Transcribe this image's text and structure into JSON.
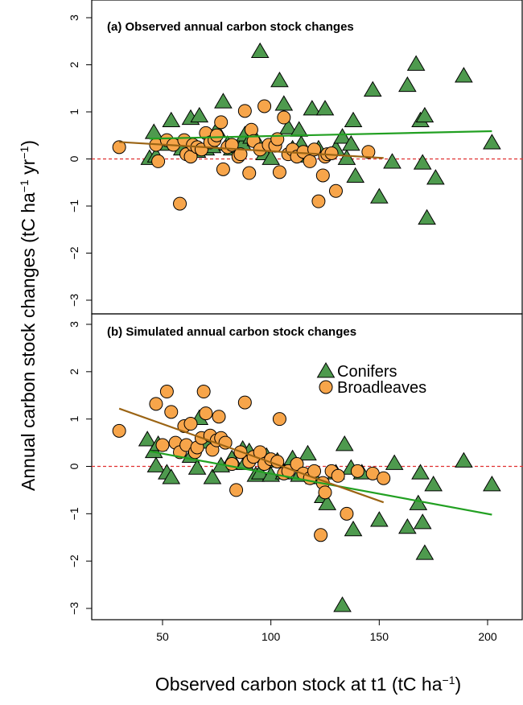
{
  "chart_data": [
    {
      "type": "scatter",
      "title": "(a) Observed annual carbon stock changes",
      "xlabel": "Observed carbon stock at t1",
      "xunit_base": "tC ha",
      "xunit_exp": "−1",
      "ylabel_main": "Annual carbon stock changes (tC ha",
      "ylabel_exp1": "−1",
      "ylabel_mid": " yr",
      "ylabel_exp2": "−1",
      "ylabel_end": ")",
      "xlim": [
        22,
        224
      ],
      "ylim": [
        -3.3,
        3.3
      ],
      "xticks": [
        "50",
        "100",
        "150",
        "200"
      ],
      "yticks": [
        "3",
        "2",
        "1",
        "0",
        "−1",
        "−2",
        "−3"
      ],
      "reference_line": 0,
      "series": [
        {
          "name": "Conifers",
          "marker": "triangle",
          "color": "#4e9a4e",
          "x": [
            44,
            46,
            47,
            52,
            54,
            59,
            63,
            66,
            67,
            70,
            73,
            75,
            78,
            80,
            82,
            85,
            87,
            88,
            91,
            93,
            95,
            97,
            100,
            104,
            106,
            108,
            110,
            113,
            114,
            117,
            119,
            122,
            125,
            130,
            133,
            135,
            137,
            138,
            139,
            147,
            150,
            156,
            163,
            167,
            169,
            170,
            171,
            172,
            176,
            189,
            202
          ],
          "y": [
            0.0,
            0.55,
            0.05,
            0.3,
            0.8,
            0.2,
            0.85,
            0.15,
            0.9,
            0.2,
            0.25,
            0.6,
            1.2,
            0.3,
            0.2,
            0.25,
            0.3,
            0.5,
            0.45,
            0.4,
            2.27,
            0.1,
            0.0,
            1.65,
            1.15,
            0.65,
            0.2,
            0.6,
            0.3,
            0.05,
            1.05,
            0.2,
            1.05,
            0.2,
            0.45,
            0.0,
            0.3,
            0.8,
            -0.38,
            1.45,
            -0.82,
            -0.08,
            1.55,
            2.0,
            0.8,
            -0.1,
            0.9,
            -1.27,
            -0.42,
            1.75,
            0.33
          ]
        },
        {
          "name": "Broadleaves",
          "marker": "circle",
          "color": "#f7a54a",
          "x": [
            30,
            47,
            48,
            52,
            55,
            58,
            60,
            61,
            63,
            64,
            66,
            68,
            70,
            72,
            74,
            75,
            77,
            78,
            80,
            82,
            85,
            86,
            88,
            90,
            91,
            92,
            95,
            97,
            99,
            102,
            103,
            104,
            106,
            108,
            110,
            112,
            115,
            118,
            120,
            122,
            124,
            125,
            126,
            128,
            130,
            145
          ],
          "y": [
            0.25,
            0.3,
            -0.05,
            0.4,
            0.3,
            -0.95,
            0.4,
            0.1,
            0.05,
            0.3,
            0.25,
            0.2,
            0.55,
            0.35,
            0.4,
            0.5,
            0.78,
            -0.22,
            0.25,
            0.3,
            0.05,
            0.1,
            1.02,
            -0.3,
            0.62,
            0.38,
            0.2,
            1.12,
            0.3,
            0.28,
            0.42,
            -0.28,
            0.88,
            0.1,
            0.2,
            0.05,
            0.15,
            -0.05,
            0.2,
            -0.9,
            -0.35,
            0.05,
            0.1,
            0.12,
            -0.68,
            0.15
          ]
        }
      ],
      "fits": [
        {
          "name": "Conifers",
          "color": "#22a022",
          "x": [
            44,
            202
          ],
          "y": [
            0.43,
            0.59
          ]
        },
        {
          "name": "Broadleaves",
          "color": "#9b6414",
          "x": [
            30,
            152
          ],
          "y": [
            0.36,
            0.02
          ]
        }
      ]
    },
    {
      "type": "scatter",
      "title": "(b) Simulated annual carbon stock changes",
      "xlim": [
        22,
        224
      ],
      "ylim": [
        -3.3,
        3.3
      ],
      "xticks": [
        "50",
        "100",
        "150",
        "200"
      ],
      "yticks": [
        "3",
        "2",
        "1",
        "0",
        "−1",
        "−2",
        "−3"
      ],
      "reference_line": 0,
      "legend": {
        "position": "top-center",
        "entries": [
          {
            "label": "Conifers",
            "marker": "triangle",
            "color": "#4e9a4e"
          },
          {
            "label": "Broadleaves",
            "marker": "circle",
            "color": "#f7a54a"
          }
        ]
      },
      "series": [
        {
          "name": "Conifers",
          "marker": "triangle",
          "color": "#4e9a4e",
          "x": [
            43,
            46,
            47,
            48,
            52,
            54,
            63,
            66,
            67,
            70,
            73,
            77,
            82,
            87,
            88,
            90,
            93,
            95,
            98,
            100,
            103,
            106,
            110,
            113,
            117,
            120,
            124,
            126,
            130,
            133,
            134,
            137,
            138,
            142,
            150,
            157,
            163,
            168,
            169,
            170,
            171,
            175,
            189,
            202
          ],
          "y": [
            0.55,
            0.3,
            0.0,
            0.45,
            -0.15,
            -0.25,
            0.2,
            -0.05,
            1.0,
            0.5,
            -0.25,
            0.0,
            0.15,
            0.35,
            0.05,
            0.3,
            -0.2,
            -0.15,
            0.2,
            -0.2,
            0.1,
            -0.15,
            0.15,
            -0.2,
            0.25,
            -0.25,
            -0.65,
            -0.8,
            -0.15,
            -2.95,
            0.45,
            -0.05,
            -1.35,
            -0.15,
            -1.15,
            0.05,
            -1.3,
            -0.8,
            -0.15,
            -1.2,
            -1.85,
            -0.4,
            0.1,
            -0.4
          ]
        },
        {
          "name": "Broadleaves",
          "marker": "circle",
          "color": "#f7a54a",
          "x": [
            30,
            47,
            50,
            52,
            54,
            56,
            58,
            60,
            61,
            63,
            65,
            66,
            68,
            69,
            70,
            72,
            73,
            75,
            76,
            77,
            79,
            82,
            84,
            86,
            88,
            90,
            92,
            95,
            97,
            100,
            103,
            104,
            106,
            108,
            112,
            115,
            118,
            120,
            123,
            124,
            125,
            128,
            131,
            135,
            140,
            147,
            152
          ],
          "y": [
            0.75,
            1.32,
            0.45,
            1.58,
            1.15,
            0.5,
            0.3,
            0.85,
            0.45,
            0.9,
            0.3,
            0.4,
            0.6,
            1.58,
            1.12,
            0.65,
            0.35,
            0.55,
            1.05,
            0.6,
            0.5,
            0.05,
            -0.5,
            0.3,
            1.35,
            0.1,
            0.2,
            0.3,
            0.05,
            0.15,
            0.1,
            1.0,
            -0.15,
            -0.1,
            0.05,
            -0.15,
            -0.25,
            -0.1,
            -1.45,
            -0.35,
            -0.55,
            -0.1,
            -0.2,
            -1.0,
            -0.1,
            -0.15,
            -0.25
          ]
        }
      ],
      "fits": [
        {
          "name": "Conifers",
          "color": "#22a022",
          "x": [
            44,
            202
          ],
          "y": [
            0.32,
            -1.02
          ]
        },
        {
          "name": "Broadleaves",
          "color": "#9b6414",
          "x": [
            30,
            152
          ],
          "y": [
            1.22,
            -0.76
          ]
        }
      ]
    }
  ]
}
